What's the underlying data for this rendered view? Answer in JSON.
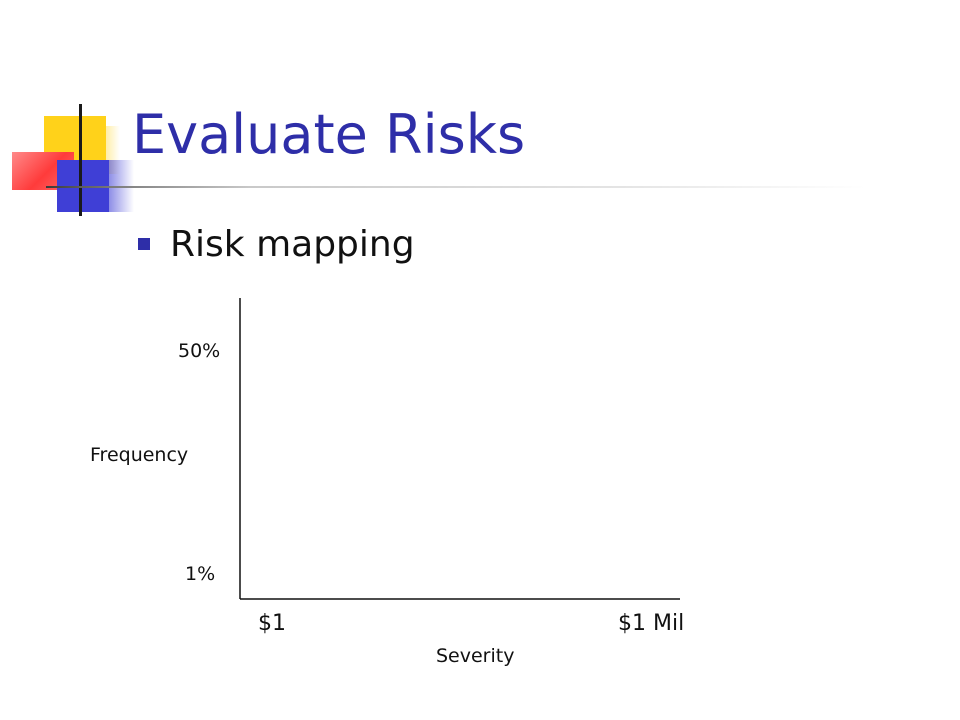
{
  "slide": {
    "title": "Evaluate Risks",
    "bullet": "Risk mapping"
  },
  "diagram": {
    "y_axis": {
      "label": "Frequency",
      "top_tick": "50%",
      "bottom_tick": "1%"
    },
    "x_axis": {
      "label": "Severity",
      "left_tick": "$1",
      "right_tick": "$1 Mil"
    }
  },
  "colors": {
    "title": "#2e2ea8",
    "bullet": "#2e2ea8",
    "logo_yellow": "#ffd21a",
    "logo_red": "#ff3b3b",
    "logo_blue": "#3f3fd6"
  },
  "icons": {
    "logo": "corner-squares-logo",
    "bullet": "square-bullet"
  }
}
